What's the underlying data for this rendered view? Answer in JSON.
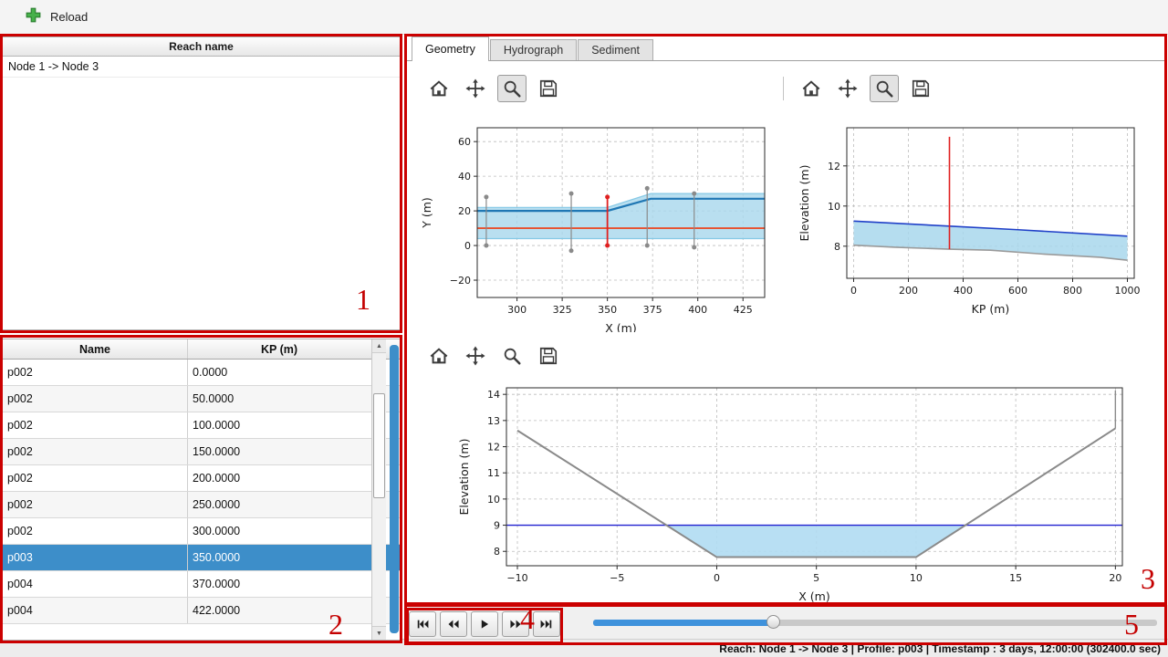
{
  "app": {
    "toolbar_reload": "Reload"
  },
  "reach_panel": {
    "header": "Reach name",
    "items": [
      "Node 1 -> Node 3"
    ]
  },
  "profile_table": {
    "columns": [
      "Name",
      "KP (m)"
    ],
    "rows": [
      [
        "p002",
        "0.0000"
      ],
      [
        "p002",
        "50.0000"
      ],
      [
        "p002",
        "100.0000"
      ],
      [
        "p002",
        "150.0000"
      ],
      [
        "p002",
        "200.0000"
      ],
      [
        "p002",
        "250.0000"
      ],
      [
        "p002",
        "300.0000"
      ],
      [
        "p003",
        "350.0000"
      ],
      [
        "p004",
        "370.0000"
      ],
      [
        "p004",
        "422.0000"
      ]
    ],
    "selected_row": 7
  },
  "tabs": [
    {
      "label": "Geometry",
      "selected": true
    },
    {
      "label": "Hydrograph",
      "selected": false
    },
    {
      "label": "Sediment",
      "selected": false
    }
  ],
  "chart_data": [
    {
      "type": "line",
      "name": "plan-view",
      "xlabel": "X (m)",
      "ylabel": "Y (m)",
      "xlim": [
        278,
        437
      ],
      "ylim": [
        -30,
        68
      ],
      "xticks": [
        300,
        325,
        350,
        375,
        400,
        425
      ],
      "xtick_labels": [
        "300",
        "325",
        "350",
        "375",
        "400",
        "425"
      ],
      "yticks": [
        -20,
        0,
        20,
        40,
        60
      ],
      "ytick_labels": [
        "−20",
        "0",
        "20",
        "40",
        "60"
      ],
      "fills": [
        {
          "name": "channel-band",
          "color": "#a8d7ec",
          "opacity": 0.8,
          "points": [
            [
              278,
              4
            ],
            [
              437,
              4
            ],
            [
              437,
              30
            ],
            [
              374,
              30
            ],
            [
              350,
              22
            ],
            [
              278,
              22
            ]
          ]
        }
      ],
      "series": [
        {
          "name": "bank-upper",
          "color": "#85c9e6",
          "width": 1.2,
          "points": [
            [
              278,
              22
            ],
            [
              350,
              22
            ],
            [
              374,
              30
            ],
            [
              437,
              30
            ]
          ]
        },
        {
          "name": "bank-lower",
          "color": "#85c9e6",
          "width": 1.2,
          "points": [
            [
              278,
              4
            ],
            [
              437,
              4
            ]
          ]
        },
        {
          "name": "water-edge",
          "color": "#1f77b4",
          "width": 2.2,
          "points": [
            [
              278,
              20
            ],
            [
              350,
              20
            ],
            [
              374,
              27
            ],
            [
              437,
              27
            ]
          ]
        },
        {
          "name": "thalweg",
          "color": "#e8502e",
          "width": 1.8,
          "points": [
            [
              278,
              10
            ],
            [
              437,
              10
            ]
          ]
        }
      ],
      "vlines": [
        {
          "x": 283,
          "y0": 0,
          "y1": 28,
          "color": "#8a8a8a",
          "width": 1.2,
          "markers": true
        },
        {
          "x": 330,
          "y0": -3,
          "y1": 30,
          "color": "#8a8a8a",
          "width": 1.2,
          "markers": true
        },
        {
          "x": 350,
          "y0": 0,
          "y1": 28,
          "color": "#e02020",
          "width": 1.8,
          "markers": true
        },
        {
          "x": 372,
          "y0": 0,
          "y1": 33,
          "color": "#8a8a8a",
          "width": 1.2,
          "markers": true
        },
        {
          "x": 398,
          "y0": -1,
          "y1": 30,
          "color": "#8a8a8a",
          "width": 1.2,
          "markers": true
        }
      ]
    },
    {
      "type": "line",
      "name": "longitudinal-profile",
      "xlabel": "KP (m)",
      "ylabel": "Elevation (m)",
      "xlim": [
        -25,
        1025
      ],
      "ylim": [
        6.4,
        13.9
      ],
      "xticks": [
        0,
        200,
        400,
        600,
        800,
        1000
      ],
      "xtick_labels": [
        "0",
        "200",
        "400",
        "600",
        "800",
        "1000"
      ],
      "yticks": [
        8,
        10,
        12
      ],
      "ytick_labels": [
        "8",
        "10",
        "12"
      ],
      "fills": [
        {
          "name": "water-body",
          "color": "#a8d7ec",
          "opacity": 0.85,
          "points": [
            [
              0,
              9.25
            ],
            [
              350,
              9.0
            ],
            [
              600,
              8.82
            ],
            [
              1000,
              8.5
            ],
            [
              1000,
              7.3
            ],
            [
              900,
              7.45
            ],
            [
              700,
              7.6
            ],
            [
              500,
              7.8
            ],
            [
              350,
              7.85
            ],
            [
              150,
              7.95
            ],
            [
              0,
              8.05
            ]
          ]
        }
      ],
      "series": [
        {
          "name": "bed",
          "color": "#9a9a9a",
          "width": 1.6,
          "points": [
            [
              0,
              8.05
            ],
            [
              150,
              7.95
            ],
            [
              350,
              7.85
            ],
            [
              500,
              7.8
            ],
            [
              700,
              7.6
            ],
            [
              900,
              7.45
            ],
            [
              1000,
              7.3
            ]
          ]
        },
        {
          "name": "water-surface",
          "color": "#2040c8",
          "width": 1.6,
          "points": [
            [
              0,
              9.25
            ],
            [
              350,
              9.0
            ],
            [
              600,
              8.82
            ],
            [
              1000,
              8.5
            ]
          ]
        }
      ],
      "vlines": [
        {
          "x": 350,
          "y0": 7.85,
          "y1": 13.45,
          "color": "#e02020",
          "width": 1.6,
          "markers": false
        }
      ]
    },
    {
      "type": "line",
      "name": "cross-section",
      "xlabel": "X (m)",
      "ylabel": "Elevation (m)",
      "xlim": [
        -10.55,
        20.35
      ],
      "ylim": [
        7.45,
        14.25
      ],
      "xticks": [
        -10,
        -5,
        0,
        5,
        10,
        15,
        20
      ],
      "xtick_labels": [
        "−10",
        "−5",
        "0",
        "5",
        "10",
        "15",
        "20"
      ],
      "yticks": [
        8,
        9,
        10,
        11,
        12,
        13,
        14
      ],
      "ytick_labels": [
        "8",
        "9",
        "10",
        "11",
        "12",
        "13",
        "14"
      ],
      "fills": [
        {
          "name": "water-area",
          "color": "#b0dcf2",
          "opacity": 0.9,
          "points": [
            [
              -2.53,
              9
            ],
            [
              0,
              7.78
            ],
            [
              10,
              7.78
            ],
            [
              12.48,
              9
            ]
          ]
        }
      ],
      "series": [
        {
          "name": "water-level",
          "color": "#2020d0",
          "width": 1.3,
          "points": [
            [
              -10.55,
              9
            ],
            [
              20.35,
              9
            ]
          ]
        },
        {
          "name": "section-line",
          "color": "#8a8a8a",
          "width": 2,
          "points": [
            [
              -10,
              12.62
            ],
            [
              0,
              7.78
            ],
            [
              10,
              7.78
            ],
            [
              20,
              12.7
            ]
          ]
        },
        {
          "name": "right-wall",
          "color": "#8a8a8a",
          "width": 1.4,
          "points": [
            [
              20,
              12.7
            ],
            [
              20,
              14.15
            ]
          ]
        }
      ],
      "vlines": []
    }
  ],
  "playback": {
    "buttons": [
      {
        "name": "skip-to-start",
        "icon": "skip_start"
      },
      {
        "name": "rewind",
        "icon": "rewind"
      },
      {
        "name": "play",
        "icon": "play"
      },
      {
        "name": "fast-forward",
        "icon": "forward"
      },
      {
        "name": "skip-to-end",
        "icon": "skip_end"
      }
    ],
    "slider_percent": 32
  },
  "status_bar": {
    "text": "Reach: Node 1 -> Node 3 | Profile: p003 | Timestamp : 3 days, 12:00:00 (302400.0 sec)"
  },
  "annotations": {
    "labels": [
      "1",
      "2",
      "3",
      "4",
      "5"
    ]
  },
  "colors": {
    "selection": "#3d8ec9",
    "annotation": "#cb0000",
    "water_fill": "#a8d7ec",
    "water_line": "#2040c8",
    "bed_line": "#9a9a9a",
    "profile_marker": "#e02020"
  }
}
